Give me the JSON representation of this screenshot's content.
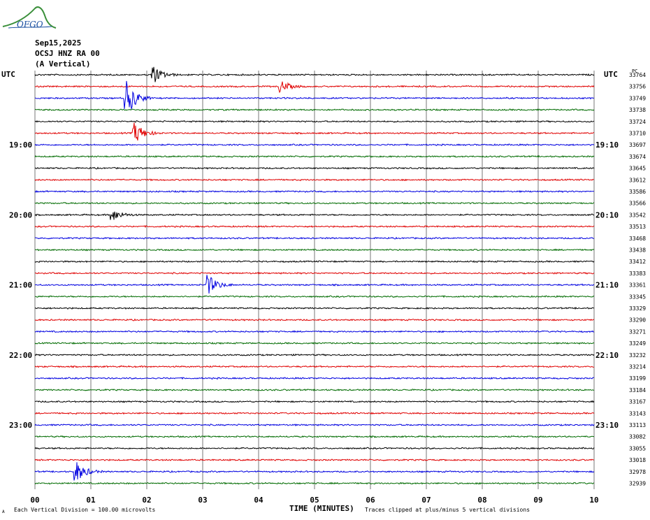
{
  "logo": {
    "text": "OFGO"
  },
  "header": {
    "date": "Sep15,2025",
    "station": "OCSJ HNZ RA 00",
    "component": "(A Vertical)"
  },
  "utc_left": "UTC",
  "utc_right": "UTC",
  "right_unit": "PC",
  "footer": {
    "scale_note": "Each Vertical Division =  100.00 microvolts",
    "xaxis_title": "TIME (MINUTES)",
    "clip_note": "Traces clipped at plus/minus 5 vertical divisions",
    "corner_mark": "A"
  },
  "chart_data": {
    "type": "line",
    "title": "Sep15,2025 OCSJ HNZ RA 00 (A Vertical)",
    "xlabel": "TIME (MINUTES)",
    "ylabel": "",
    "xlim": [
      0,
      10
    ],
    "x_ticks": [
      "00",
      "01",
      "02",
      "03",
      "04",
      "05",
      "06",
      "07",
      "08",
      "09",
      "10"
    ],
    "grid": true,
    "trace_colors": [
      "#000000",
      "#e00000",
      "#0000e0",
      "#006b00"
    ],
    "left_time_labels": [
      {
        "row": 6,
        "label": "19:00"
      },
      {
        "row": 12,
        "label": "20:00"
      },
      {
        "row": 18,
        "label": "21:00"
      },
      {
        "row": 24,
        "label": "22:00"
      },
      {
        "row": 30,
        "label": "23:00"
      }
    ],
    "right_time_labels": [
      {
        "row": 6,
        "label": "19:10"
      },
      {
        "row": 12,
        "label": "20:10"
      },
      {
        "row": 18,
        "label": "21:10"
      },
      {
        "row": 24,
        "label": "22:10"
      },
      {
        "row": 30,
        "label": "23:10"
      }
    ],
    "right_values": [
      "33764",
      "33756",
      "33749",
      "33738",
      "33724",
      "33710",
      "33697",
      "33674",
      "33645",
      "33612",
      "33586",
      "33566",
      "33542",
      "33513",
      "33468",
      "33438",
      "33412",
      "33383",
      "33361",
      "33345",
      "33329",
      "33290",
      "33271",
      "33249",
      "33232",
      "33214",
      "33199",
      "33184",
      "33167",
      "33143",
      "33113",
      "33082",
      "33055",
      "33018",
      "32978",
      "32939"
    ],
    "events": [
      {
        "row": 0,
        "minute": 2.1,
        "amplitude": "large"
      },
      {
        "row": 1,
        "minute": 4.4,
        "amplitude": "medium"
      },
      {
        "row": 2,
        "minute": 1.65,
        "amplitude": "clipped"
      },
      {
        "row": 5,
        "minute": 1.8,
        "amplitude": "large"
      },
      {
        "row": 12,
        "minute": 1.4,
        "amplitude": "medium"
      },
      {
        "row": 18,
        "minute": 3.1,
        "amplitude": "large"
      },
      {
        "row": 34,
        "minute": 0.75,
        "amplitude": "large"
      }
    ]
  }
}
